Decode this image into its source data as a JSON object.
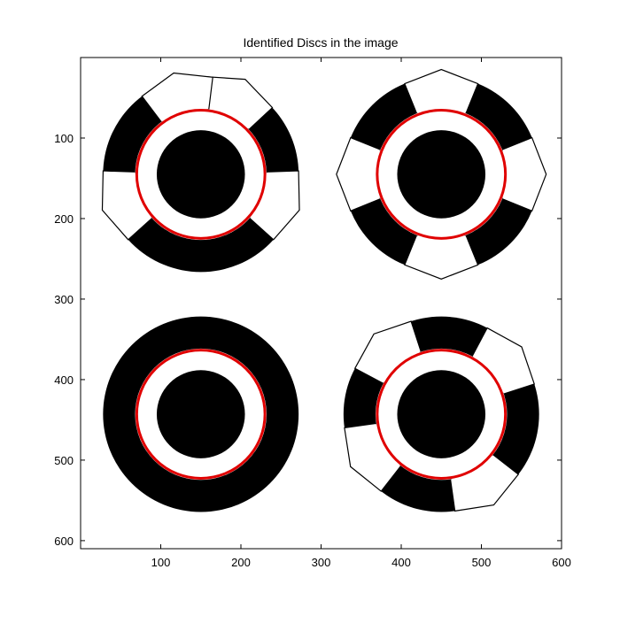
{
  "chart_data": {
    "type": "image",
    "title": "Identified Discs in the image",
    "xlabel": "",
    "ylabel": "",
    "xlim": [
      0,
      600
    ],
    "ylim": [
      610,
      0
    ],
    "grid": false,
    "x_ticks": [
      "100",
      "200",
      "300",
      "400",
      "500",
      "600"
    ],
    "y_ticks": [
      "100",
      "200",
      "300",
      "400",
      "500",
      "600"
    ],
    "x_tick_values": [
      100,
      200,
      300,
      400,
      500,
      600
    ],
    "y_tick_values": [
      100,
      200,
      300,
      400,
      500,
      600
    ],
    "colors": {
      "disc": "#000000",
      "background": "#ffffff",
      "detected_circle": "#e00000"
    },
    "discs": [
      {
        "name": "disc-top-left",
        "cx": 150,
        "cy": 145,
        "outer_r": 122,
        "ring_inner_r": 82,
        "core_r": 55,
        "detected_r": 80,
        "white_segment_angles": [
          -65,
          20,
          160,
          255
        ]
      },
      {
        "name": "disc-top-right",
        "cx": 450,
        "cy": 145,
        "outer_r": 122,
        "ring_inner_r": 82,
        "core_r": 55,
        "detected_r": 80,
        "white_segment_angles": [
          -90,
          0,
          90,
          180
        ]
      },
      {
        "name": "disc-bottom-left",
        "cx": 150,
        "cy": 443,
        "outer_r": 122,
        "ring_inner_r": 82,
        "core_r": 55,
        "detected_r": 80,
        "white_segment_angles": []
      },
      {
        "name": "disc-bottom-right",
        "cx": 450,
        "cy": 443,
        "outer_r": 122,
        "ring_inner_r": 82,
        "core_r": 55,
        "detected_r": 80,
        "white_segment_angles": [
          -40,
          60,
          150,
          230
        ]
      }
    ]
  }
}
